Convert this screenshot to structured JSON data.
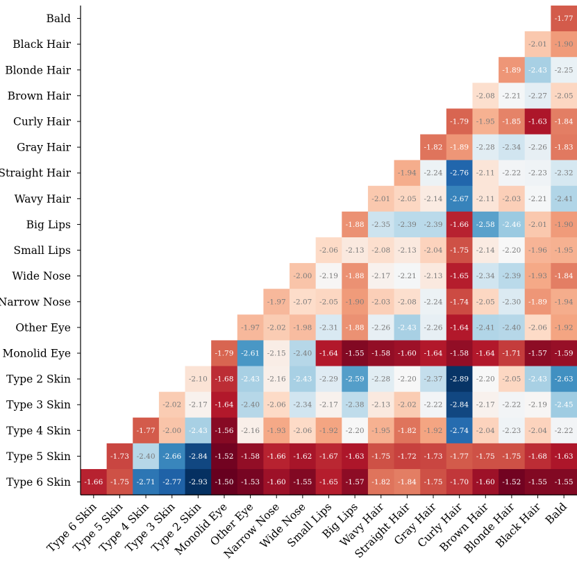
{
  "chart_data": {
    "type": "heatmap",
    "title": "",
    "xlabel": "",
    "ylabel": "",
    "x_categories": [
      "Type 6 Skin",
      "Type 5 Skin",
      "Type 4 Skin",
      "Type 3 Skin",
      "Type 2 Skin",
      "Monolid Eye",
      "Other Eye",
      "Narrow Nose",
      "Wide Nose",
      "Small Lips",
      "Big Lips",
      "Wavy Hair",
      "Straight Hair",
      "Gray Hair",
      "Curly Hair",
      "Brown Hair",
      "Blonde Hair",
      "Black Hair",
      "Bald"
    ],
    "y_categories": [
      "Bald",
      "Black Hair",
      "Blonde Hair",
      "Brown Hair",
      "Curly Hair",
      "Gray Hair",
      "Straight Hair",
      "Wavy Hair",
      "Big Lips",
      "Small Lips",
      "Wide Nose",
      "Narrow Nose",
      "Other Eye",
      "Monolid Eye",
      "Type 2 Skin",
      "Type 3 Skin",
      "Type 4 Skin",
      "Type 5 Skin",
      "Type 6 Skin"
    ],
    "value_format": "2-decimal",
    "color_scale": {
      "type": "diverging",
      "low_color": "#053061",
      "mid_color": "#f7f7f7",
      "high_color": "#67001f",
      "vmin": -2.9,
      "vmid": -2.2,
      "vmax": -1.5
    },
    "rows": [
      [
        -1.77
      ],
      [
        -2.01,
        -1.9
      ],
      [
        -1.89,
        -2.43,
        -2.25
      ],
      [
        -2.08,
        -2.21,
        -2.27,
        -2.05
      ],
      [
        -1.79,
        -1.95,
        -1.85,
        -1.63,
        -1.84
      ],
      [
        -1.82,
        -1.89,
        -2.28,
        -2.34,
        -2.26,
        -1.83
      ],
      [
        -1.94,
        -2.24,
        -2.76,
        -2.11,
        -2.22,
        -2.23,
        -2.32
      ],
      [
        -2.01,
        -2.05,
        -2.14,
        -2.67,
        -2.11,
        -2.03,
        -2.21,
        -2.41
      ],
      [
        -1.88,
        -2.35,
        -2.39,
        -2.39,
        -1.66,
        -2.58,
        -2.46,
        -2.01,
        -1.9
      ],
      [
        -2.06,
        -2.13,
        -2.08,
        -2.13,
        -2.04,
        -1.75,
        -2.14,
        -2.2,
        -1.96,
        -1.95
      ],
      [
        -2.0,
        -2.19,
        -1.88,
        -2.17,
        -2.21,
        -2.13,
        -1.65,
        -2.34,
        -2.39,
        -1.93,
        -1.84
      ],
      [
        -1.97,
        -2.07,
        -2.05,
        -1.9,
        -2.03,
        -2.08,
        -2.24,
        -1.74,
        -2.05,
        -2.3,
        -1.89,
        -1.94
      ],
      [
        -1.97,
        -2.02,
        -1.98,
        -2.31,
        -1.88,
        -2.26,
        -2.43,
        -2.26,
        -1.64,
        -2.41,
        -2.4,
        -2.06,
        -1.92
      ],
      [
        -1.79,
        -2.61,
        -2.15,
        -2.4,
        -1.64,
        -1.55,
        -1.58,
        -1.6,
        -1.64,
        -1.58,
        -1.64,
        -1.71,
        -1.57,
        -1.59
      ],
      [
        -2.1,
        -1.68,
        -2.43,
        -2.16,
        -2.43,
        -2.29,
        -2.59,
        -2.28,
        -2.2,
        -2.37,
        -2.89,
        -2.2,
        -2.05,
        -2.43,
        -2.63
      ],
      [
        -2.02,
        -2.17,
        -1.64,
        -2.4,
        -2.06,
        -2.34,
        -2.17,
        -2.38,
        -2.13,
        -2.02,
        -2.22,
        -2.84,
        -2.17,
        -2.22,
        -2.19,
        -2.45
      ],
      [
        -1.77,
        -2.0,
        -2.43,
        -1.56,
        -2.16,
        -1.93,
        -2.06,
        -1.92,
        -2.2,
        -1.95,
        -1.82,
        -1.92,
        -2.74,
        -2.04,
        -2.23,
        -2.04,
        -2.22
      ],
      [
        -1.73,
        -2.4,
        -2.66,
        -2.84,
        -1.52,
        -1.58,
        -1.66,
        -1.62,
        -1.67,
        -1.63,
        -1.75,
        -1.72,
        -1.73,
        -1.77,
        -1.75,
        -1.75,
        -1.68,
        -1.63
      ],
      [
        -1.66,
        -1.75,
        -2.71,
        -2.77,
        -2.93,
        -1.5,
        -1.53,
        -1.6,
        -1.55,
        -1.65,
        -1.57,
        -1.82,
        -1.84,
        -1.75,
        -1.7,
        -1.6,
        -1.52,
        -1.55,
        -1.55
      ]
    ]
  }
}
